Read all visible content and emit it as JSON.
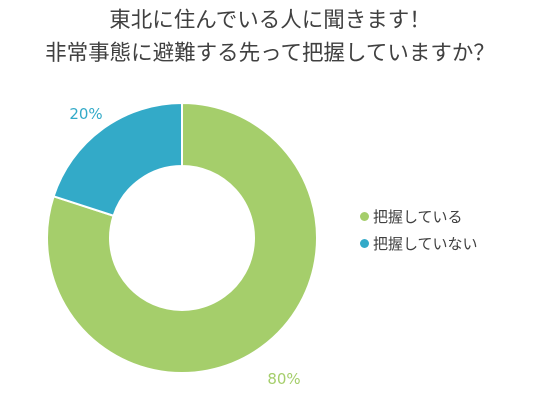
{
  "title_lines": [
    "東北に住んでいる人に聞きます！",
    "非常事態に避難する先って把握していますか？"
  ],
  "chart_data": {
    "type": "pie",
    "donut": true,
    "title": "東北に住んでいる人に聞きます！ 非常事態に避難する先って把握していますか？",
    "categories": [
      "把握している",
      "把握していない"
    ],
    "values": [
      80,
      20
    ],
    "data_labels": [
      "80%",
      "20%"
    ],
    "colors": [
      "#a5ce6b",
      "#33aac8"
    ],
    "legend_position": "right"
  }
}
